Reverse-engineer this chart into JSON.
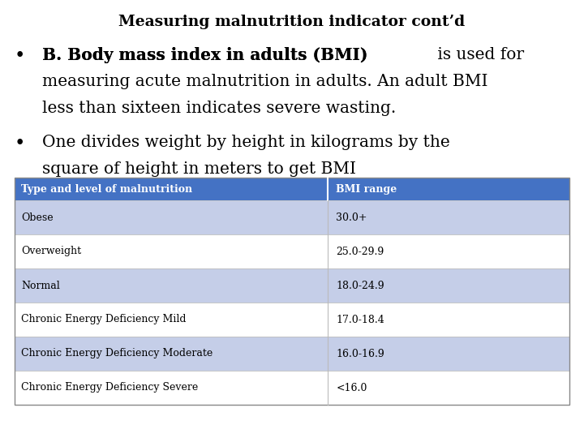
{
  "title": "Measuring malnutrition indicator cont’d",
  "bullet1_bold": "B. Body mass index in adults (BMI)",
  "bullet1_rest": " is used for",
  "bullet1_line2": "measuring acute malnutrition in adults. An adult BMI",
  "bullet1_line3": "less than sixteen indicates severe wasting.",
  "bullet2_line1": "One divides weight by height in kilograms by the",
  "bullet2_line2": "square of height in meters to get BMI",
  "table_header": [
    "Type and level of malnutrition",
    "BMI range"
  ],
  "table_rows": [
    [
      "Obese",
      "30.0+"
    ],
    [
      "Overweight",
      "25.0-29.9"
    ],
    [
      "Normal",
      "18.0-24.9"
    ],
    [
      "Chronic Energy Deficiency Mild",
      "17.0-18.4"
    ],
    [
      "Chronic Energy Deficiency Moderate",
      "16.0-16.9"
    ],
    [
      "Chronic Energy Deficiency Severe",
      "<16.0"
    ]
  ],
  "header_bg": "#4472C4",
  "row_bg_even": "#C5CEE8",
  "row_bg_odd": "#FFFFFF",
  "header_text_color": "#FFFFFF",
  "row_text_color": "#000000",
  "title_color": "#000000",
  "bg_color": "#FFFFFF",
  "title_fontsize": 13.5,
  "bullet_fontsize": 14.5,
  "table_header_fontsize": 9,
  "table_row_fontsize": 9
}
